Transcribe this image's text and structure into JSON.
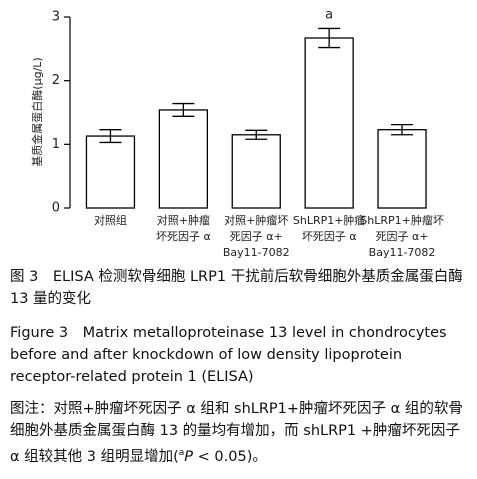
{
  "chart_data": {
    "type": "bar",
    "y_label": "基质金属蛋白酶(μg/L)",
    "categories": [
      "对照组",
      "对照+肿瘤\n坏死因子 α",
      "对照+肿瘤坏\n死因子 α+\nBay11-7082",
      "ShLRP1+肿瘤\n坏死因子 α",
      "ShLRP1+肿瘤坏\n死因子 α+\nBay11-7082"
    ],
    "values": [
      1.13,
      1.54,
      1.15,
      2.67,
      1.23
    ],
    "errors": [
      0.1,
      0.1,
      0.07,
      0.15,
      0.08
    ],
    "markers": [
      null,
      null,
      null,
      "a",
      null
    ],
    "color": "#ffffff",
    "ylim": [
      0,
      3
    ],
    "yticks": [
      0,
      1,
      2,
      3
    ],
    "grid": false
  },
  "caption": {
    "zh": "图 3　ELISA 检测软骨细胞 LRP1 干扰前后软骨细胞外基质金属蛋白酶 13 量的变化",
    "en": "Figure 3　Matrix metalloproteinase 13 level in chondrocytes before and after knockdown of low density lipoprotein receptor-related protein 1 (ELISA)",
    "note_before": "图注：对照+肿瘤坏死因子 α 组和 shLRP1+肿瘤坏死因子 α 组的软骨细胞外基质金属蛋白酶 13 的量均有增加，而 shLRP1 +肿瘤坏死因子 α 组较其他 3 组明显增加(",
    "note_sup": "a",
    "note_italic": "P",
    "note_after": " < 0.05)。"
  }
}
